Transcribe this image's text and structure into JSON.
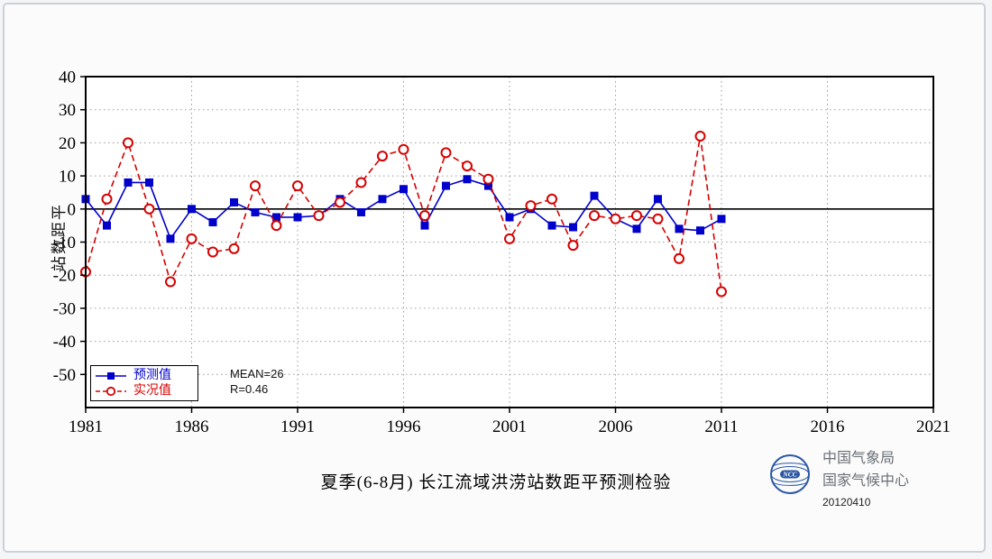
{
  "page": {
    "background": "#fbfbfb",
    "frame_border_color": "#ccd1d8"
  },
  "chart_data": {
    "type": "line",
    "title": "夏季(6-8月) 长江流域洪涝站数距平预测检验",
    "xlabel": "",
    "ylabel": "站数距平",
    "xlim": [
      1981,
      2021
    ],
    "ylim": [
      -60,
      40
    ],
    "xticks": [
      1981,
      1986,
      1991,
      1996,
      2001,
      2006,
      2011,
      2016,
      2021
    ],
    "yticks": [
      40,
      30,
      20,
      10,
      0,
      -10,
      -20,
      -30,
      -40,
      -50
    ],
    "grid": "dotted",
    "grid_color": "#9a9a9a",
    "zero_line": true,
    "legend_position": "bottom-left",
    "x": [
      1981,
      1982,
      1983,
      1984,
      1985,
      1986,
      1987,
      1988,
      1989,
      1990,
      1991,
      1992,
      1993,
      1994,
      1995,
      1996,
      1997,
      1998,
      1999,
      2000,
      2001,
      2002,
      2003,
      2004,
      2005,
      2006,
      2007,
      2008,
      2009,
      2010,
      2011
    ],
    "series": [
      {
        "name": "预测值",
        "color": "#0000cc",
        "marker": "square",
        "line": "solid",
        "values": [
          3,
          -5,
          8,
          8,
          -9,
          0,
          -4,
          2,
          -1,
          -2.5,
          -2.5,
          -2,
          3,
          -1,
          3,
          6,
          -5,
          7,
          9,
          7,
          -2.5,
          0,
          -5,
          -5.5,
          4,
          -3,
          -6,
          3,
          -6,
          -6.5,
          -3
        ]
      },
      {
        "name": "实况值",
        "color": "#d40000",
        "marker": "open-circle",
        "line": "dashed",
        "values": [
          -19,
          3,
          20,
          0,
          -22,
          -9,
          -13,
          -12,
          7,
          -5,
          7,
          -2,
          2,
          8,
          16,
          18,
          -2,
          17,
          13,
          9,
          -9,
          1,
          3,
          -11,
          -2,
          -3,
          -2,
          -3,
          -15,
          22,
          -25
        ]
      }
    ]
  },
  "stats": {
    "mean": "MEAN=26",
    "r": "R=0.46"
  },
  "footer": {
    "logo_text": "NCC",
    "org_line1": "中国气象局",
    "org_line2": "国家气候中心",
    "date": "20120410"
  }
}
